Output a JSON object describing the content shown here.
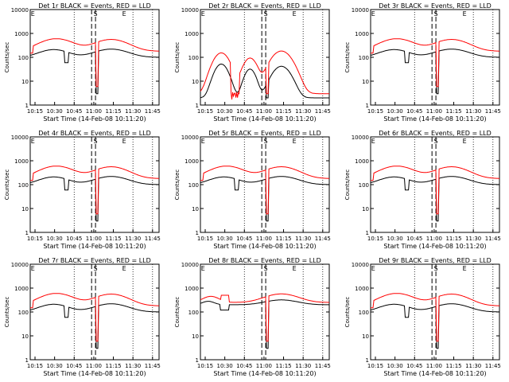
{
  "figure": {
    "xlabel": "Start Time (14-Feb-08 10:11:20)",
    "ylabel": "Counts/sec",
    "x_tick_labels": [
      "10:15",
      "10:30",
      "10:45",
      "11:00",
      "11:15",
      "11:30",
      "11:45"
    ],
    "y_tick_labels": [
      "1",
      "10",
      "100",
      "1000",
      "10000"
    ],
    "marker_labels": [
      "E",
      "S",
      "E"
    ],
    "colors": {
      "events": "#000000",
      "lld": "#ff0000",
      "axes": "#000000"
    }
  },
  "chart_data": [
    {
      "type": "line",
      "title": "Det 1r BLACK = Events, RED = LLD",
      "x_range": [
        "10:11:20",
        "11:50:00"
      ],
      "ylim": [
        1,
        10000
      ],
      "yscale": "log",
      "series": [
        {
          "name": "Events",
          "color": "#000000",
          "profile": "normal"
        },
        {
          "name": "LLD",
          "color": "#ff0000",
          "profile": "normal"
        }
      ]
    },
    {
      "type": "line",
      "title": "Det 2r BLACK = Events, RED = LLD",
      "x_range": [
        "10:11:20",
        "11:50:00"
      ],
      "ylim": [
        1,
        10000
      ],
      "yscale": "log",
      "series": [
        {
          "name": "Events",
          "color": "#000000",
          "profile": "det2"
        },
        {
          "name": "LLD",
          "color": "#ff0000",
          "profile": "det2"
        }
      ]
    },
    {
      "type": "line",
      "title": "Det 3r BLACK = Events, RED = LLD",
      "x_range": [
        "10:11:20",
        "11:50:00"
      ],
      "ylim": [
        1,
        10000
      ],
      "yscale": "log",
      "series": [
        {
          "name": "Events",
          "color": "#000000",
          "profile": "normal"
        },
        {
          "name": "LLD",
          "color": "#ff0000",
          "profile": "normal"
        }
      ]
    },
    {
      "type": "line",
      "title": "Det 4r BLACK = Events, RED = LLD",
      "x_range": [
        "10:11:20",
        "11:50:00"
      ],
      "ylim": [
        1,
        10000
      ],
      "yscale": "log",
      "series": [
        {
          "name": "Events",
          "color": "#000000",
          "profile": "normal"
        },
        {
          "name": "LLD",
          "color": "#ff0000",
          "profile": "normal"
        }
      ]
    },
    {
      "type": "line",
      "title": "Det 5r BLACK = Events, RED = LLD",
      "x_range": [
        "10:11:20",
        "11:50:00"
      ],
      "ylim": [
        1,
        10000
      ],
      "yscale": "log",
      "series": [
        {
          "name": "Events",
          "color": "#000000",
          "profile": "normal"
        },
        {
          "name": "LLD",
          "color": "#ff0000",
          "profile": "normal"
        }
      ]
    },
    {
      "type": "line",
      "title": "Det 6r BLACK = Events, RED = LLD",
      "x_range": [
        "10:11:20",
        "11:50:00"
      ],
      "ylim": [
        1,
        10000
      ],
      "yscale": "log",
      "series": [
        {
          "name": "Events",
          "color": "#000000",
          "profile": "normal"
        },
        {
          "name": "LLD",
          "color": "#ff0000",
          "profile": "normal"
        }
      ]
    },
    {
      "type": "line",
      "title": "Det 7r BLACK = Events, RED = LLD",
      "x_range": [
        "10:11:20",
        "11:50:00"
      ],
      "ylim": [
        1,
        10000
      ],
      "yscale": "log",
      "series": [
        {
          "name": "Events",
          "color": "#000000",
          "profile": "normal"
        },
        {
          "name": "LLD",
          "color": "#ff0000",
          "profile": "normal"
        }
      ]
    },
    {
      "type": "line",
      "title": "Det 8r BLACK = Events, RED = LLD",
      "x_range": [
        "10:11:20",
        "11:50:00"
      ],
      "ylim": [
        1,
        10000
      ],
      "yscale": "log",
      "series": [
        {
          "name": "Events",
          "color": "#000000",
          "profile": "det8"
        },
        {
          "name": "LLD",
          "color": "#ff0000",
          "profile": "det8"
        }
      ]
    },
    {
      "type": "line",
      "title": "Det 9r BLACK = Events, RED = LLD",
      "x_range": [
        "10:11:20",
        "11:50:00"
      ],
      "ylim": [
        1,
        10000
      ],
      "yscale": "log",
      "series": [
        {
          "name": "Events",
          "color": "#000000",
          "profile": "normal"
        },
        {
          "name": "LLD",
          "color": "#ff0000",
          "profile": "normal"
        }
      ]
    }
  ]
}
